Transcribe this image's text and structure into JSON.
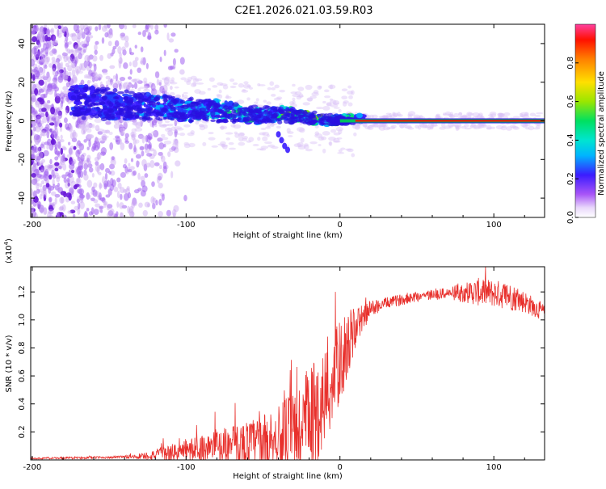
{
  "title": "C2E1.2026.021.03.59.R03",
  "colors": {
    "snr_line": "#e8302c",
    "weak": "#c9a6f2",
    "core": "#ff0000",
    "axis": "#000000"
  },
  "chart_data": [
    {
      "type": "heatmap",
      "name": "spectrogram",
      "xlabel": "Height of straight line (km)",
      "ylabel": "Frequency (Hz)",
      "xlim": [
        -201,
        133
      ],
      "ylim": [
        -50,
        50
      ],
      "xticks": [
        -200,
        -100,
        0,
        100
      ],
      "yticks": [
        -40,
        -20,
        0,
        20,
        40
      ],
      "xticklabels": [
        "-200",
        "-100",
        "0",
        "100"
      ],
      "yticklabels": [
        "-40",
        "-20",
        "0",
        "20",
        "40"
      ],
      "colorbar": {
        "label": "Normalized spectral amplitude",
        "range": [
          0,
          1
        ],
        "ticks": [
          0.0,
          0.2,
          0.4,
          0.6,
          0.8
        ],
        "ticklabels": [
          "0.0",
          "0.2",
          "0.4",
          "0.6",
          "0.8"
        ]
      },
      "features": {
        "noise_region_x": [
          -201,
          -120
        ],
        "trace_start_x": -175,
        "trace_freq_start": 10,
        "trace_freq_end": 0,
        "steady_line_x": [
          10,
          133
        ],
        "steady_line_freq": 0
      }
    },
    {
      "type": "line",
      "name": "snr",
      "xlabel": "Height of straight line (km)",
      "ylabel": "SNR (10 * v/v)",
      "y_multiplier": "(x10",
      "y_multiplier_exp": "4",
      "y_multiplier_close": ")",
      "xlim": [
        -201,
        133
      ],
      "ylim": [
        0,
        1.38
      ],
      "xticks": [
        -200,
        -100,
        0,
        100
      ],
      "yticks": [
        0.2,
        0.4,
        0.6,
        0.8,
        1.0,
        1.2
      ],
      "xticklabels": [
        "-200",
        "-100",
        "0",
        "100"
      ],
      "yticklabels": [
        "0.2",
        "0.4",
        "0.6",
        "0.8",
        "1.0",
        "1.2"
      ],
      "series": [
        {
          "name": "SNR",
          "x": [
            -201,
            -170,
            -140,
            -125,
            -110,
            -90,
            -75,
            -60,
            -40,
            -25,
            -15,
            -5,
            0,
            5,
            12,
            20,
            30,
            50,
            70,
            90,
            100,
            110,
            120,
            133
          ],
          "base": [
            0.01,
            0.015,
            0.02,
            0.03,
            0.05,
            0.08,
            0.1,
            0.12,
            0.15,
            0.22,
            0.35,
            0.55,
            0.7,
            0.82,
            0.98,
            1.08,
            1.12,
            1.17,
            1.19,
            1.2,
            1.19,
            1.17,
            1.13,
            1.05
          ],
          "amp": [
            0.005,
            0.008,
            0.01,
            0.03,
            0.06,
            0.1,
            0.13,
            0.16,
            0.22,
            0.4,
            0.38,
            0.35,
            0.3,
            0.25,
            0.12,
            0.06,
            0.04,
            0.04,
            0.04,
            0.1,
            0.1,
            0.1,
            0.08,
            0.06
          ]
        }
      ]
    }
  ]
}
